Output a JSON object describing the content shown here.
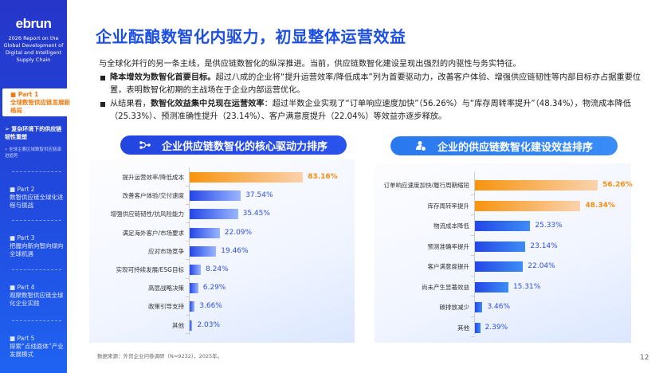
{
  "sidebar": {
    "logo": "ebrun",
    "subtitle": "2026 Report on the Global Development of Digital and Intelligent Supply Chain",
    "parts": [
      {
        "num": "■  Part 1",
        "title": "全球数智供应链发展新格局",
        "active": true
      },
      {
        "num": "■  Part 2",
        "title": "数智供应链全球化进程与挑战"
      },
      {
        "num": "■  Part 3",
        "title": "把握向新向智向绿向全球机遇"
      },
      {
        "num": "■  Part 4",
        "title": "观摩数智供应链全球化企业实践"
      },
      {
        "num": "■  Part 5",
        "title": "探索“点线面体”产业发展模式"
      }
    ],
    "current_section": "➢  复杂环境下的供应链韧性重塑",
    "sub_section": "•  全球主要区域数智供应链演进趋势"
  },
  "main": {
    "title": "企业酝酿数智化内驱力，初显整体运营效益",
    "intro": "与全球化并行的另一条主线，是供应链数智化的纵深推进。当前，供应链数智化建设呈现出强烈的内驱性与务实特征。",
    "bullets": [
      {
        "bold": "降本增效为数智化首要目标。",
        "text": "超过八成的企业将“提升运营效率/降低成本”列为首要驱动力，改善客户体验、增强供应链韧性等内部目标亦占据重要位置，表明数智化初期的主战场在于企业内部运营优化。",
        "prefix": ""
      },
      {
        "prefix": "从结果看，",
        "bold": "数智化效益集中兑现在运营效率",
        "text": "：超过半数企业实现了“订单响应速度加快”（56.26%）与“库存周转率提升”（48.34%），物流成本降低（25.33%）、预测准确性提升（23.14%）、客户满意度提升（22.04%）等效益亦逐步释放。"
      }
    ],
    "source": "数据来源：外贸企业问卷调研（N=9232），2025年。",
    "page_number": "12"
  },
  "colors": {
    "accent": "#1d4fe3",
    "highlight": "#f58c12",
    "bar_blue": "#2f4ee6"
  },
  "chart_data": [
    {
      "type": "bar",
      "orientation": "horizontal",
      "title": "企业供应链数智化的核心驱动力排序",
      "icon": "network-icon",
      "categories": [
        "提升运营效率/降低成本",
        "改善客户体验/交付速度",
        "增强供应链韧性/抗风险能力",
        "满足海外客户/市场要求",
        "应对市场竞争",
        "实现可持续发展/ESG目标",
        "高层战略决策",
        "政策引导支持",
        "其他"
      ],
      "values": [
        83.16,
        37.54,
        35.45,
        22.09,
        19.46,
        8.24,
        6.29,
        3.66,
        2.03
      ],
      "labels": [
        "83.16%",
        "37.54%",
        "35.45%",
        "22.09%",
        "19.46%",
        "8.24%",
        "6.29%",
        "3.66%",
        "2.03%"
      ],
      "highlighted": [
        0
      ]
    },
    {
      "type": "bar",
      "orientation": "horizontal",
      "title": "企业的供应链数智化建设效益排序",
      "icon": "money-person-icon",
      "categories": [
        "订单响应速度加快/履行周期缩短",
        "库存周转率提升",
        "物流成本降低",
        "预测准确率提升",
        "客户满意度提升",
        "尚未产生显著效益",
        "碳排放减少",
        "其他"
      ],
      "values": [
        56.26,
        48.34,
        25.33,
        23.14,
        22.04,
        15.31,
        3.46,
        2.39
      ],
      "labels": [
        "56.26%",
        "48.34%",
        "25.33%",
        "23.14%",
        "22.04%",
        "15.31%",
        "3.46%",
        "2.39%"
      ],
      "highlighted": [
        0,
        1
      ]
    }
  ]
}
